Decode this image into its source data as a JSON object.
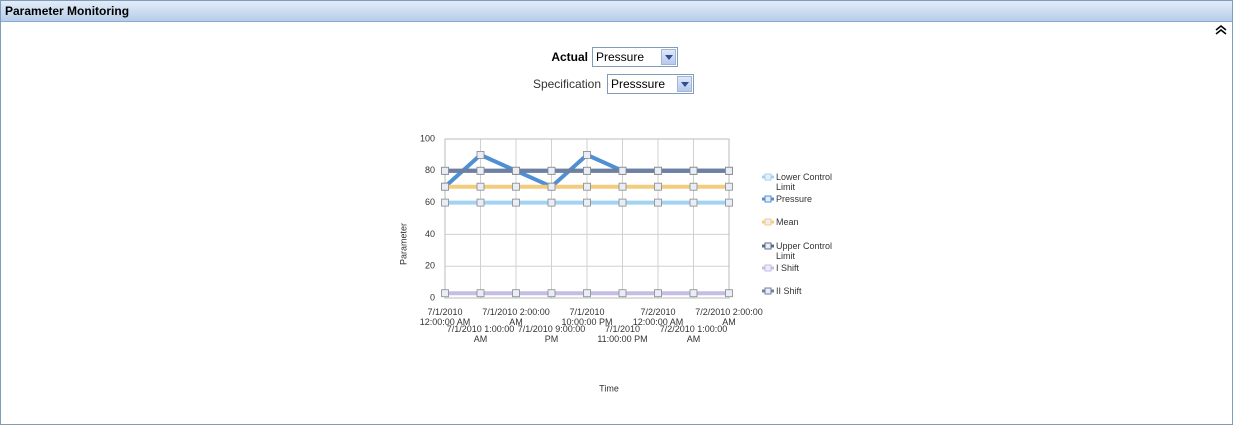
{
  "header": {
    "title": "Parameter Monitoring"
  },
  "filters": [
    {
      "label": "Actual",
      "value": "Pressure"
    },
    {
      "label": "Specification",
      "value": "Presssure"
    }
  ],
  "chart_data": {
    "type": "line",
    "x_label": "Time",
    "y_label": "Parameter",
    "categories": [
      "7/1/2010 12:00:00 AM",
      "7/1/2010 1:00:00 AM",
      "7/1/2010 2:00:00 AM",
      "7/1/2010 9:00:00 PM",
      "7/1/2010 10:00:00 PM",
      "7/1/2010 11:00:00 PM",
      "7/2/2010 12:00:00 AM",
      "7/2/2010 1:00:00 AM",
      "7/2/2010 2:00:00 AM"
    ],
    "series": [
      {
        "name": "Lower Control Limit",
        "color": "#a3d3f3",
        "values": [
          60,
          60,
          60,
          60,
          60,
          60,
          60,
          60,
          60
        ]
      },
      {
        "name": "Pressure",
        "color": "#4f8fd3",
        "values": [
          70,
          90,
          80,
          70,
          90,
          80,
          80,
          80,
          80
        ]
      },
      {
        "name": "Mean",
        "color": "#f3cd7d",
        "values": [
          70,
          70,
          70,
          70,
          70,
          70,
          70,
          70,
          70
        ]
      },
      {
        "name": "Upper Control Limit",
        "color": "#5b6a8a",
        "values": [
          80,
          80,
          80,
          80,
          80,
          80,
          80,
          80,
          80
        ]
      },
      {
        "name": "I Shift",
        "color": "#c5bde3",
        "values": [
          3,
          3,
          3,
          3,
          3,
          3,
          3,
          3,
          3
        ]
      },
      {
        "name": "II Shift",
        "color": "#6d80a3",
        "values": [
          80,
          80,
          80,
          80,
          80,
          80,
          80,
          80,
          80
        ]
      }
    ],
    "ylim": [
      0,
      100
    ],
    "yticks": [
      0,
      20,
      40,
      60,
      80,
      100
    ],
    "grid": true,
    "legend": "right"
  }
}
